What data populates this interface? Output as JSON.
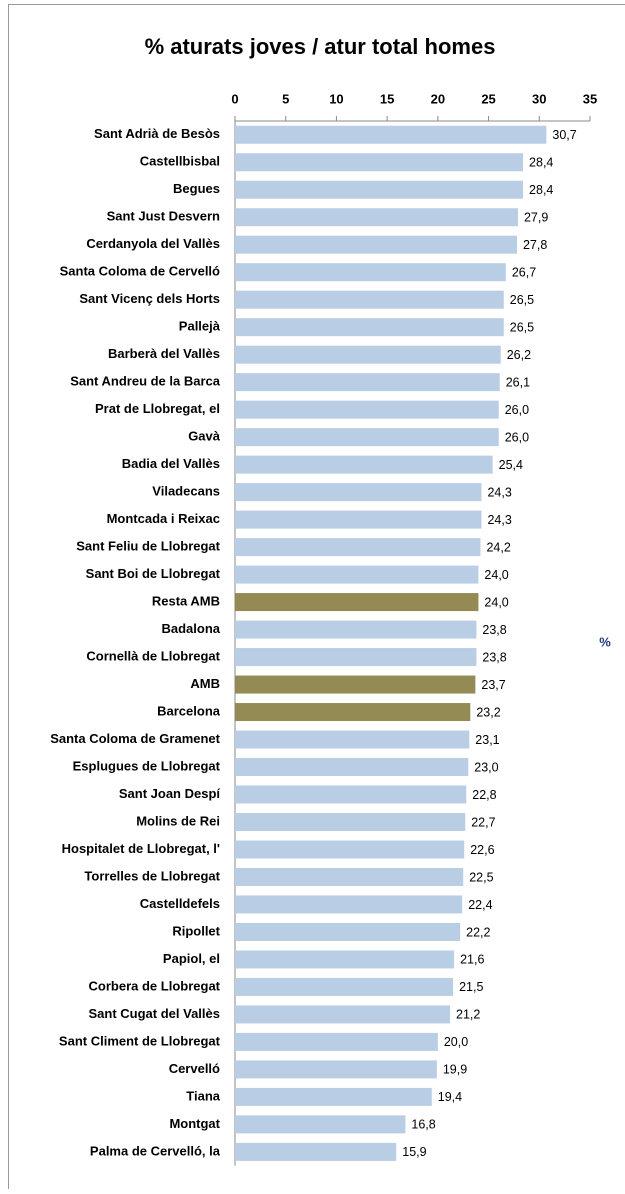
{
  "chart_data": {
    "type": "hbar",
    "title": "%  aturats joves / atur total homes",
    "annotation": "%",
    "categories": [
      "Sant Adrià de Besòs",
      "Castellbisbal",
      "Begues",
      "Sant Just Desvern",
      "Cerdanyola del Vallès",
      "Santa Coloma de Cervelló",
      "Sant Vicenç dels Horts",
      "Pallejà",
      "Barberà del Vallès",
      "Sant Andreu de la Barca",
      "Prat de Llobregat, el",
      "Gavà",
      "Badia del Vallès",
      "Viladecans",
      "Montcada i Reixac",
      "Sant Feliu de Llobregat",
      "Sant Boi de Llobregat",
      "Resta AMB",
      "Badalona",
      "Cornellà de Llobregat",
      "AMB",
      "Barcelona",
      "Santa Coloma de Gramenet",
      "Esplugues de Llobregat",
      "Sant Joan Despí",
      "Molins de Rei",
      "Hospitalet de Llobregat, l'",
      "Torrelles de Llobregat",
      "Castelldefels",
      "Ripollet",
      "Papiol, el",
      "Corbera de Llobregat",
      "Sant Cugat del Vallès",
      "Sant Climent de Llobregat",
      "Cervelló",
      "Tiana",
      "Montgat",
      "Palma de Cervelló, la"
    ],
    "values": [
      30.7,
      28.4,
      28.4,
      27.9,
      27.8,
      26.7,
      26.5,
      26.5,
      26.2,
      26.1,
      26.0,
      26.0,
      25.4,
      24.3,
      24.3,
      24.2,
      24.0,
      24.0,
      23.8,
      23.8,
      23.7,
      23.2,
      23.1,
      23.0,
      22.8,
      22.7,
      22.6,
      22.5,
      22.4,
      22.2,
      21.6,
      21.5,
      21.2,
      20.0,
      19.9,
      19.4,
      16.8,
      15.9
    ],
    "value_labels": [
      "30,7",
      "28,4",
      "28,4",
      "27,9",
      "27,8",
      "26,7",
      "26,5",
      "26,5",
      "26,2",
      "26,1",
      "26,0",
      "26,0",
      "25,4",
      "24,3",
      "24,3",
      "24,2",
      "24,0",
      "24,0",
      "23,8",
      "23,8",
      "23,7",
      "23,2",
      "23,1",
      "23,0",
      "22,8",
      "22,7",
      "22,6",
      "22,5",
      "22,4",
      "22,2",
      "21,6",
      "21,5",
      "21,2",
      "20,0",
      "19,9",
      "19,4",
      "16,8",
      "15,9"
    ],
    "colors": [
      "#b9cde5",
      "#b9cde5",
      "#b9cde5",
      "#b9cde5",
      "#b9cde5",
      "#b9cde5",
      "#b9cde5",
      "#b9cde5",
      "#b9cde5",
      "#b9cde5",
      "#b9cde5",
      "#b9cde5",
      "#b9cde5",
      "#b9cde5",
      "#b9cde5",
      "#b9cde5",
      "#b9cde5",
      "#948a54",
      "#b9cde5",
      "#b9cde5",
      "#948a54",
      "#948a54",
      "#b9cde5",
      "#b9cde5",
      "#b9cde5",
      "#b9cde5",
      "#b9cde5",
      "#b9cde5",
      "#b9cde5",
      "#b9cde5",
      "#b9cde5",
      "#b9cde5",
      "#b9cde5",
      "#b9cde5",
      "#b9cde5",
      "#b9cde5",
      "#b9cde5",
      "#b9cde5"
    ],
    "xlim": [
      0,
      35
    ],
    "xticks": [
      0,
      5,
      10,
      15,
      20,
      25,
      30,
      35
    ]
  }
}
